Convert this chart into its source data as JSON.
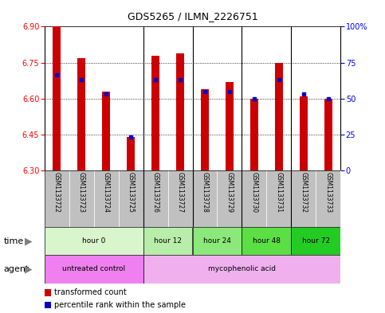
{
  "title": "GDS5265 / ILMN_2226751",
  "samples": [
    "GSM1133722",
    "GSM1133723",
    "GSM1133724",
    "GSM1133725",
    "GSM1133726",
    "GSM1133727",
    "GSM1133728",
    "GSM1133729",
    "GSM1133730",
    "GSM1133731",
    "GSM1133732",
    "GSM1133733"
  ],
  "bar_values": [
    6.9,
    6.77,
    6.63,
    6.44,
    6.78,
    6.79,
    6.64,
    6.67,
    6.6,
    6.75,
    6.61,
    6.6
  ],
  "blue_dot_values": [
    6.7,
    6.68,
    6.62,
    6.44,
    6.68,
    6.68,
    6.63,
    6.63,
    6.6,
    6.68,
    6.62,
    6.6
  ],
  "ylim_left": [
    6.3,
    6.9
  ],
  "ylim_right": [
    0,
    100
  ],
  "yticks_left": [
    6.3,
    6.45,
    6.6,
    6.75,
    6.9
  ],
  "yticks_right": [
    0,
    25,
    50,
    75,
    100
  ],
  "time_groups": [
    {
      "label": "hour 0",
      "start": 0,
      "end": 4,
      "color": "#d8f5cc"
    },
    {
      "label": "hour 12",
      "start": 4,
      "end": 6,
      "color": "#b8edaa"
    },
    {
      "label": "hour 24",
      "start": 6,
      "end": 8,
      "color": "#8ce87a"
    },
    {
      "label": "hour 48",
      "start": 8,
      "end": 10,
      "color": "#5cdf44"
    },
    {
      "label": "hour 72",
      "start": 10,
      "end": 12,
      "color": "#22cc22"
    }
  ],
  "agent_groups": [
    {
      "label": "untreated control",
      "start": 0,
      "end": 4,
      "color": "#f080f0"
    },
    {
      "label": "mycophenolic acid",
      "start": 4,
      "end": 12,
      "color": "#f0b0f0"
    }
  ],
  "group_dividers": [
    4,
    6,
    8,
    10
  ],
  "bar_color": "#cc0000",
  "dot_color": "#0000cc",
  "bg_color": "#ffffff",
  "sample_bg_color": "#c0c0c0",
  "legend_red_label": "transformed count",
  "legend_blue_label": "percentile rank within the sample",
  "fig_width": 4.83,
  "fig_height": 3.93,
  "dpi": 100
}
